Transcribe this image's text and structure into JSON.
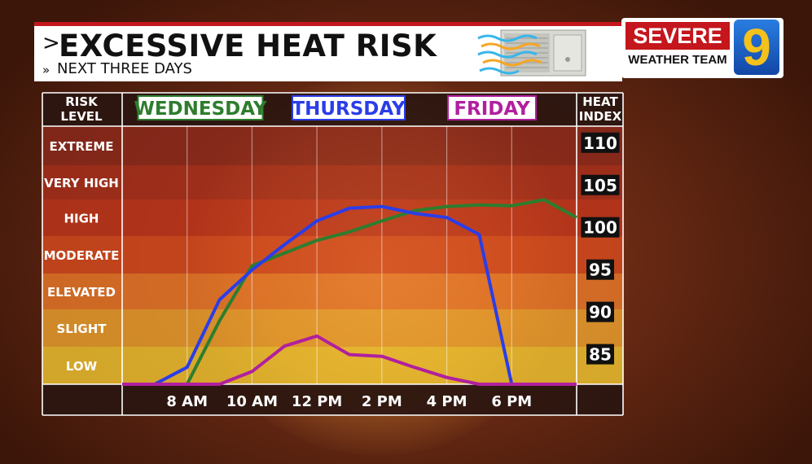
{
  "header": {
    "title": "EXCESSIVE HEAT RISK",
    "subtitle": "NEXT THREE DAYS",
    "title_chevron": ">",
    "subtitle_chevron": "»"
  },
  "logo": {
    "severe": "SEVERE",
    "number": "9",
    "team": "WEATHER TEAM"
  },
  "colors": {
    "title_bar_accent": "#c4161c",
    "wednesday": "#2e7d2e",
    "thursday": "#2b3de8",
    "friday": "#b0209e"
  },
  "chart_data": {
    "type": "line",
    "risk_column_header": [
      "RISK",
      "LEVEL"
    ],
    "heat_index_header": [
      "HEAT",
      "INDEX"
    ],
    "risk_levels": [
      "EXTREME",
      "VERY HIGH",
      "HIGH",
      "MODERATE",
      "ELEVATED",
      "SLIGHT",
      "LOW"
    ],
    "risk_band_colors": [
      "#8c2a1c",
      "#a8301c",
      "#c0361c",
      "#d64a1e",
      "#e8792a",
      "#eba12e",
      "#efc431"
    ],
    "x_tick_labels": [
      "8 AM",
      "10 AM",
      "12 PM",
      "2 PM",
      "4 PM",
      "6 PM"
    ],
    "x_hours": [
      6,
      7,
      8,
      9,
      10,
      11,
      12,
      13,
      14,
      15,
      16,
      17,
      18,
      19,
      20
    ],
    "heat_index_ticks": [
      110,
      105,
      100,
      95,
      90,
      85
    ],
    "ylim": [
      81.5,
      112
    ],
    "series": [
      {
        "name": "WEDNESDAY",
        "color": "#2e7d2e",
        "values": [
          81.5,
          81.5,
          81.5,
          89,
          95.5,
          97,
          98.5,
          99.5,
          100.8,
          102,
          102.5,
          102.7,
          102.6,
          103.3,
          101.2
        ]
      },
      {
        "name": "THURSDAY",
        "color": "#2b3de8",
        "values": [
          81.5,
          81.5,
          83.5,
          91.5,
          95,
          98,
          100.8,
          102.3,
          102.5,
          101.7,
          101.2,
          99.2,
          81.5,
          81.5,
          81.5
        ]
      },
      {
        "name": "FRIDAY",
        "color": "#b0209e",
        "values": [
          81.5,
          81.5,
          81.5,
          81.5,
          83,
          86,
          87.2,
          85,
          84.8,
          83.5,
          82.3,
          81.5,
          81.5,
          81.5,
          81.5
        ]
      }
    ]
  }
}
